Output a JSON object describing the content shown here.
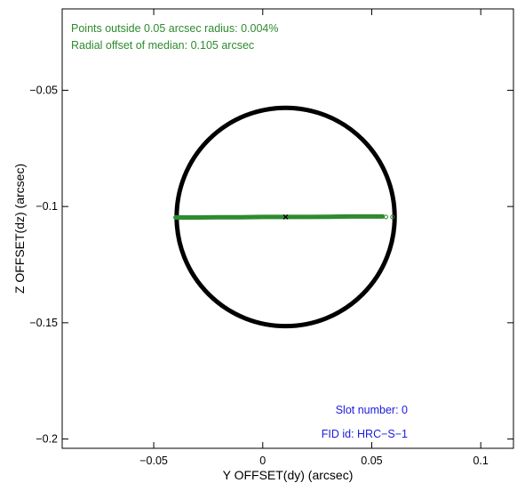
{
  "chart_data": {
    "type": "scatter",
    "xlabel": "Y OFFSET(dy) (arcsec)",
    "ylabel": "Z OFFSET(dz) (arcsec)",
    "xlim": [
      -0.092,
      0.115
    ],
    "ylim": [
      -0.204,
      -0.015
    ],
    "x_ticks": [
      -0.05,
      0,
      0.05,
      0.1
    ],
    "x_tick_labels": [
      "−0.05",
      "0",
      "0.05",
      "0.1"
    ],
    "y_ticks": [
      -0.05,
      -0.1,
      -0.15,
      -0.2
    ],
    "y_tick_labels": [
      "−0.05",
      "−0.1",
      "−0.15",
      "−0.2"
    ],
    "grid": false,
    "annotations": {
      "points_outside": "Points outside 0.05 arcsec radius: 0.004%",
      "radial_offset": "Radial offset of median: 0.105 arcsec",
      "slot_number": "Slot number: 0",
      "fid_id": "FID id: HRC−S−1"
    },
    "circle": {
      "center": [
        0.0105,
        -0.1045
      ],
      "radius": 0.05
    },
    "median": {
      "x": 0.0105,
      "y": -0.1045
    },
    "track": [
      [
        -0.04,
        -0.1047
      ],
      [
        -0.03,
        -0.1047
      ],
      [
        -0.02,
        -0.1046
      ],
      [
        -0.01,
        -0.1046
      ],
      [
        0.0,
        -0.1045
      ],
      [
        0.01,
        -0.1045
      ],
      [
        0.02,
        -0.1045
      ],
      [
        0.03,
        -0.1044
      ],
      [
        0.04,
        -0.1043
      ],
      [
        0.05,
        -0.1043
      ],
      [
        0.055,
        -0.1043
      ]
    ],
    "outliers": [
      [
        0.0565,
        -0.1045
      ],
      [
        0.0595,
        -0.1045
      ]
    ],
    "colors": {
      "annotation_green": "#2e8b2e",
      "annotation_blue": "#1a1adf",
      "track": "#2e8b2e",
      "circle": "#000000",
      "axes": "#000000"
    }
  }
}
